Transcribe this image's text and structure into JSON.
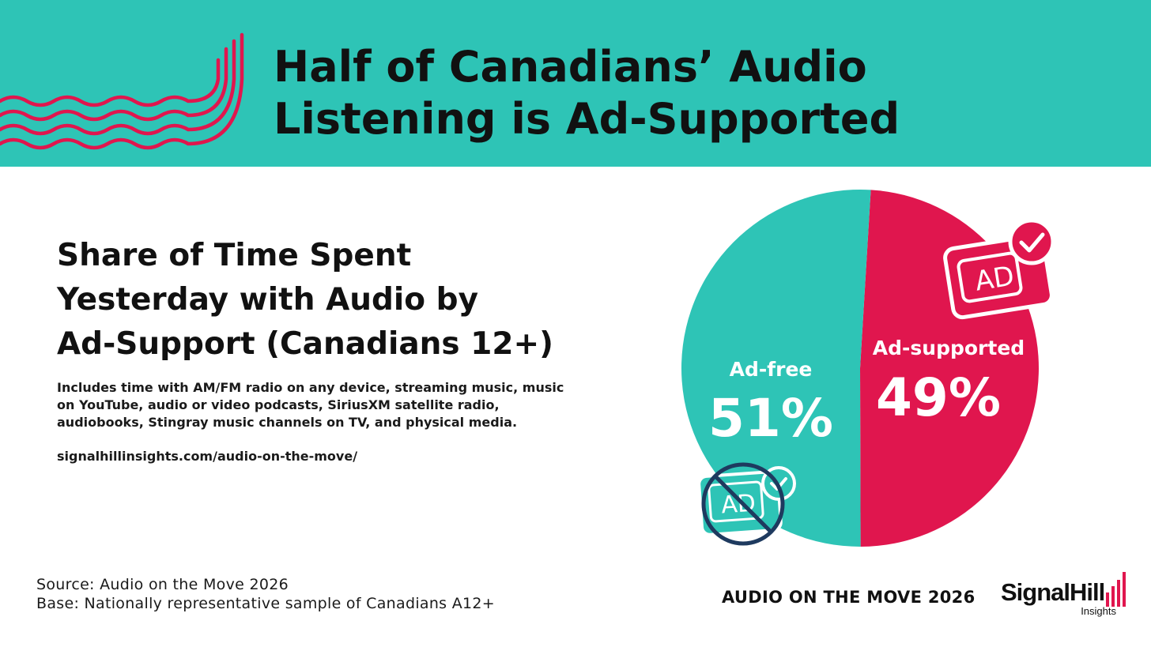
{
  "header": {
    "title_line1": "Half of Canadians’ Audio",
    "title_line2": "Listening is Ad-Supported"
  },
  "subtitle": {
    "line1": "Share of Time Spent",
    "line2": "Yesterday with Audio by",
    "line3": "Ad-Support (Canadians 12+)"
  },
  "note": {
    "line1": "Includes time with AM/FM radio on any device, streaming music, music",
    "line2": "on YouTube, audio or video podcasts, SiriusXM satellite radio,",
    "line3": "audiobooks, Stingray music channels on TV, and physical media."
  },
  "url": "signalhillinsights.com/audio-on-the-move/",
  "footer": {
    "source": "Source: Audio on the Move 2026",
    "base": "Base: Nationally representative sample of Canadians A12+",
    "brand_tag": "AUDIO ON THE MOVE 2026",
    "logo_word": "SignalHill",
    "logo_sub": "Insights"
  },
  "icons": {
    "ad_supported": {
      "name": "ad-check-icon",
      "text": "AD"
    },
    "ad_free": {
      "name": "ad-crossed-icon",
      "text": "AD"
    }
  },
  "colors": {
    "teal": "#2ec4b6",
    "crimson": "#e0164e",
    "navy": "#1e3a5f",
    "ink": "#111111",
    "white": "#ffffff"
  },
  "chart_data": {
    "type": "pie",
    "title": "Share of Time Spent Yesterday with Audio by Ad-Support (Canadians 12+)",
    "unit": "%",
    "slices": [
      {
        "label": "Ad-supported",
        "value": 49,
        "display": "49%",
        "color": "#e0164e"
      },
      {
        "label": "Ad-free",
        "value": 51,
        "display": "51%",
        "color": "#2ec4b6"
      }
    ]
  }
}
